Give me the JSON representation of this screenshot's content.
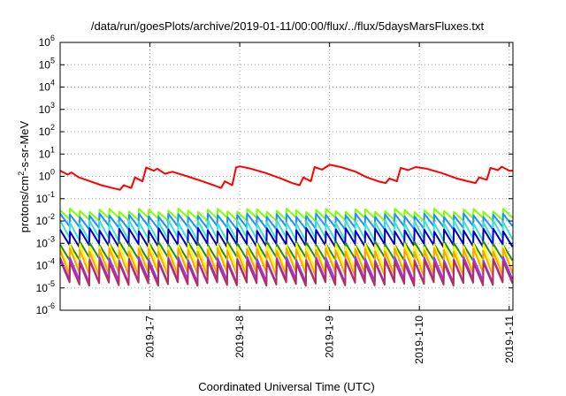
{
  "chart_data": {
    "type": "line",
    "title": "/data/run/goesPlots/archive/2019-01-11/00:00/flux/../flux/5daysMarsFluxes.txt",
    "xlabel": "Coordinated Universal Time (UTC)",
    "ylabel_base": "protons/cm",
    "ylabel_sup": "2",
    "ylabel_rest": "-s-sr-MeV",
    "x_scale": "time",
    "xlim": [
      "2019-01-06T00:00",
      "2019-01-11T01:00"
    ],
    "x_ticks": [
      {
        "label": "2019-1-7",
        "date": "2019-01-07T00:00"
      },
      {
        "label": "2019-1-8",
        "date": "2019-01-08T00:00"
      },
      {
        "label": "2019-1-9",
        "date": "2019-01-09T00:00"
      },
      {
        "label": "2019-1-10",
        "date": "2019-01-10T00:00"
      },
      {
        "label": "2019-1-11",
        "date": "2019-01-11T00:00"
      }
    ],
    "y_scale": "log",
    "ylim": [
      1e-06,
      1000000.0
    ],
    "y_ticks": [
      {
        "base": "10",
        "exp": "-6"
      },
      {
        "base": "10",
        "exp": "-5"
      },
      {
        "base": "10",
        "exp": "-4"
      },
      {
        "base": "10",
        "exp": "-3"
      },
      {
        "base": "10",
        "exp": "-2"
      },
      {
        "base": "10",
        "exp": "-1"
      },
      {
        "base": "10",
        "exp": "0"
      },
      {
        "base": "10",
        "exp": "1"
      },
      {
        "base": "10",
        "exp": "2"
      },
      {
        "base": "10",
        "exp": "3"
      },
      {
        "base": "10",
        "exp": "4"
      },
      {
        "base": "10",
        "exp": "5"
      },
      {
        "base": "10",
        "exp": "6"
      }
    ],
    "grid": true,
    "series": [
      {
        "color": "#ff0000",
        "x": [
          "2019-01-06T00:00",
          "2019-01-06T02:00",
          "2019-01-06T03:00",
          "2019-01-06T05:00",
          "2019-01-06T08:00",
          "2019-01-06T11:00",
          "2019-01-06T14:00",
          "2019-01-06T16:00",
          "2019-01-06T17:00",
          "2019-01-06T19:00",
          "2019-01-06T20:00",
          "2019-01-06T22:00",
          "2019-01-06T23:00",
          "2019-01-07T01:00",
          "2019-01-07T02:00",
          "2019-01-07T04:00",
          "2019-01-07T06:00",
          "2019-01-07T10:00",
          "2019-01-07T14:00",
          "2019-01-07T17:00",
          "2019-01-07T19:00",
          "2019-01-07T20:00",
          "2019-01-07T22:00",
          "2019-01-07T23:00",
          "2019-01-08T00:00",
          "2019-01-08T03:00",
          "2019-01-08T07:00",
          "2019-01-08T11:00",
          "2019-01-08T14:00",
          "2019-01-08T16:00",
          "2019-01-08T17:00",
          "2019-01-08T19:00",
          "2019-01-08T20:00",
          "2019-01-08T22:00",
          "2019-01-09T00:00",
          "2019-01-09T03:00",
          "2019-01-09T07:00",
          "2019-01-09T10:00",
          "2019-01-09T13:00",
          "2019-01-09T15:00",
          "2019-01-09T16:00",
          "2019-01-09T18:00",
          "2019-01-09T19:00",
          "2019-01-09T21:00",
          "2019-01-09T23:00",
          "2019-01-10T02:00",
          "2019-01-10T06:00",
          "2019-01-10T10:00",
          "2019-01-10T13:00",
          "2019-01-10T15:00",
          "2019-01-10T16:00",
          "2019-01-10T18:00",
          "2019-01-10T19:00",
          "2019-01-10T21:00",
          "2019-01-10T22:00",
          "2019-01-11T00:00",
          "2019-01-11T01:00"
        ],
        "values": [
          1.8,
          1.2,
          1.5,
          0.9,
          0.6,
          0.4,
          0.3,
          0.25,
          0.4,
          0.3,
          0.9,
          0.6,
          2.5,
          1.8,
          2.2,
          1.3,
          1.6,
          1.0,
          0.6,
          0.4,
          0.3,
          0.6,
          0.4,
          2.5,
          2.8,
          2.2,
          1.4,
          0.8,
          0.5,
          0.4,
          0.9,
          0.6,
          2.6,
          2.0,
          3.3,
          2.6,
          1.6,
          0.9,
          0.6,
          0.5,
          0.8,
          0.6,
          2.4,
          1.9,
          2.6,
          2.2,
          1.4,
          0.8,
          0.6,
          0.5,
          0.9,
          0.7,
          2.4,
          1.9,
          2.7,
          1.8,
          1.8
        ]
      }
    ],
    "spiky_series": [
      {
        "color": "#7fff00",
        "peak": 0.03,
        "trough": 0.012
      },
      {
        "color": "#1e90ff",
        "peak": 0.018,
        "trough": 0.005
      },
      {
        "color": "#40e0d0",
        "peak": 0.009,
        "trough": 0.0015
      },
      {
        "color": "#0000cd",
        "peak": 0.004,
        "trough": 0.0008
      },
      {
        "color": "#228b22",
        "peak": 0.001,
        "trough": 0.0002
      },
      {
        "color": "#ffff00",
        "peak": 0.0008,
        "trough": 6e-05
      },
      {
        "color": "#ffa500",
        "peak": 0.0005,
        "trough": 4e-05
      },
      {
        "color": "#9b30ff",
        "peak": 0.0002,
        "trough": 2e-05
      },
      {
        "color": "#b03060",
        "peak": 0.00015,
        "trough": 1.5e-05
      }
    ],
    "spike_count": 46
  }
}
